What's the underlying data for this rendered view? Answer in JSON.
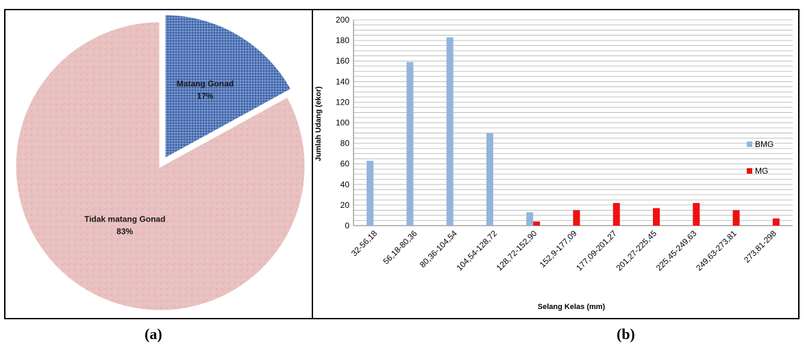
{
  "captions": {
    "a": "(a)",
    "b": "(b)"
  },
  "chart_data": [
    {
      "type": "pie",
      "slices": [
        {
          "label": "Matang Gonad",
          "value": 17,
          "value_label": "17%",
          "color": "#5b7fbf",
          "exploded": true
        },
        {
          "label": "Tidak matang Gonad",
          "value": 83,
          "value_label": "83%",
          "color": "#e8bcbc",
          "exploded": false
        }
      ]
    },
    {
      "type": "bar",
      "title": "",
      "xlabel": "Selang Kelas (mm)",
      "ylabel": "Jumlah Udang (ekor)",
      "ylim": [
        0,
        200
      ],
      "yticks": [
        0,
        20,
        40,
        60,
        80,
        100,
        120,
        140,
        160,
        180,
        200
      ],
      "grid": true,
      "legend_position": "right",
      "categories": [
        "32-56,18",
        "56,18-80,36",
        "80,36-104,54",
        "104,54-128,72",
        "128,72-152,90",
        "152,9-177,09",
        "177,09-201,27",
        "201,27-225,45",
        "225,45-249,63",
        "249,63-273,81",
        "273,81-298"
      ],
      "series": [
        {
          "name": "BMG",
          "color": "#93b4dc",
          "values": [
            63,
            159,
            183,
            90,
            13,
            0,
            0,
            0,
            0,
            0,
            0
          ]
        },
        {
          "name": "MG",
          "color": "#ee1111",
          "values": [
            0,
            0,
            0,
            0,
            4,
            15,
            22,
            17,
            22,
            15,
            7
          ]
        }
      ]
    }
  ]
}
